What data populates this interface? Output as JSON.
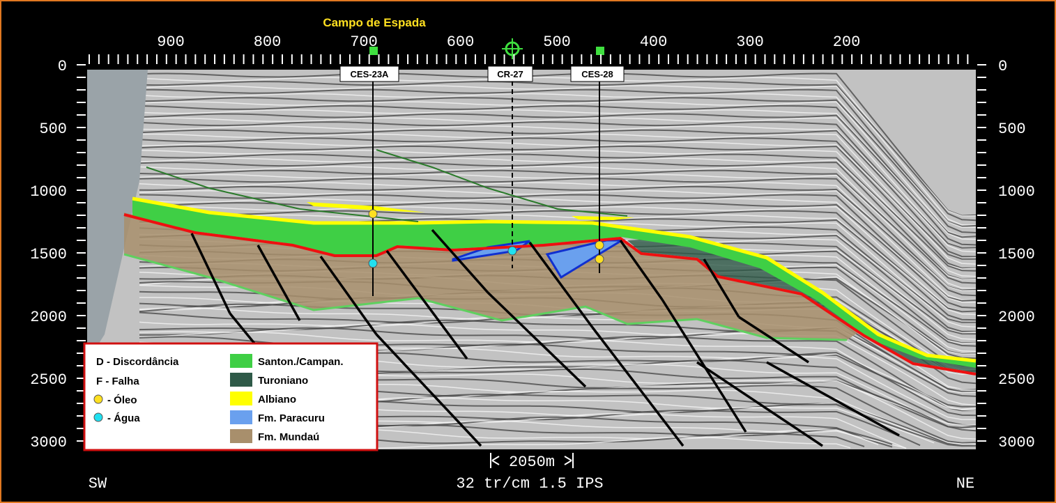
{
  "header": {
    "title": "Campo de Espada"
  },
  "top_axis": {
    "ticks": [
      900,
      800,
      700,
      600,
      500,
      400,
      300,
      200
    ]
  },
  "left_axis": {
    "ticks": [
      0,
      500,
      1000,
      1500,
      2000,
      2500,
      3000
    ]
  },
  "right_axis": {
    "ticks": [
      0,
      500,
      1000,
      1500,
      2000,
      2500,
      3000
    ]
  },
  "wells": [
    {
      "label": "CES-23A"
    },
    {
      "label": "CR-27"
    },
    {
      "label": "CES-28"
    }
  ],
  "scale": {
    "label": "2050m"
  },
  "footer": {
    "left": "SW",
    "center": "32 tr/cm 1.5 IPS",
    "right": "NE"
  },
  "legend": {
    "symbols": [
      "D - Discordância",
      "F - Falha",
      "- Óleo",
      "- Água"
    ],
    "units": [
      "Santon./Campan.",
      "Turoniano",
      "Albiano",
      "Fm. Paracuru",
      "Fm. Mundaú"
    ]
  }
}
